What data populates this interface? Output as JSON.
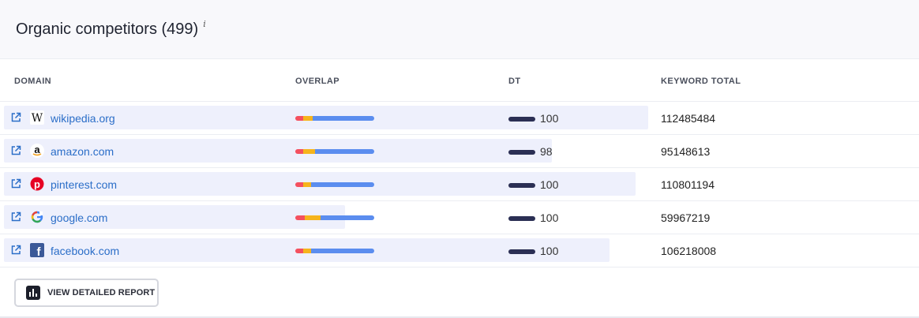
{
  "header": {
    "title": "Organic competitors (499)",
    "info_mark": "i"
  },
  "columns": {
    "domain": "DOMAIN",
    "overlap": "OVERLAP",
    "dt": "DT",
    "keyword_total": "KEYWORD TOTAL"
  },
  "overlap_colors": [
    "#f4505f",
    "#f6b41c",
    "#5b8def"
  ],
  "rows": [
    {
      "domain": "wikipedia.org",
      "favicon": "wikipedia-icon",
      "dt": "100",
      "keyword_total": "112485484",
      "overlap": [
        0.1,
        0.12,
        0.78
      ],
      "bar_fraction": 1.0
    },
    {
      "domain": "amazon.com",
      "favicon": "amazon-icon",
      "dt": "98",
      "keyword_total": "95148613",
      "overlap": [
        0.1,
        0.15,
        0.75
      ],
      "bar_fraction": 0.85
    },
    {
      "domain": "pinterest.com",
      "favicon": "pinterest-icon",
      "dt": "100",
      "keyword_total": "110801194",
      "overlap": [
        0.1,
        0.1,
        0.8
      ],
      "bar_fraction": 0.98
    },
    {
      "domain": "google.com",
      "favicon": "google-icon",
      "dt": "100",
      "keyword_total": "59967219",
      "overlap": [
        0.12,
        0.2,
        0.68
      ],
      "bar_fraction": 0.53
    },
    {
      "domain": "facebook.com",
      "favicon": "facebook-icon",
      "dt": "100",
      "keyword_total": "106218008",
      "overlap": [
        0.1,
        0.1,
        0.8
      ],
      "bar_fraction": 0.94
    }
  ],
  "footer": {
    "button_label": "VIEW DETAILED REPORT"
  }
}
